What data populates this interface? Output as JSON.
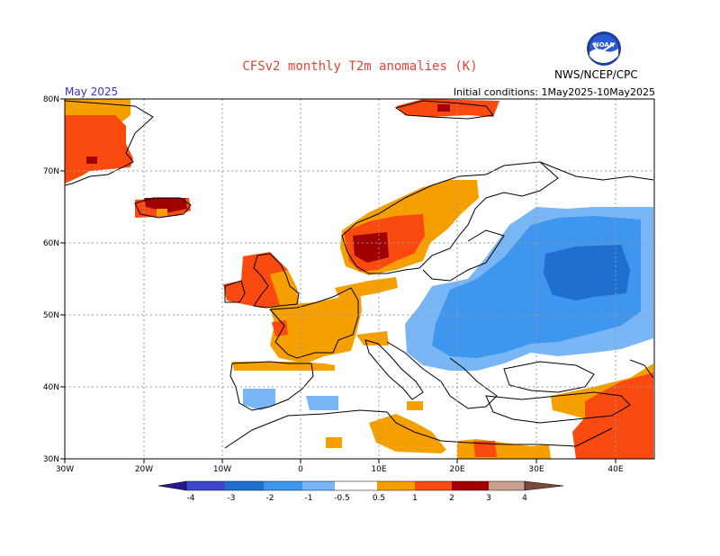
{
  "header": {
    "title": "CFSv2 monthly T2m anomalies (K)",
    "month": "May 2025",
    "initial_conditions": "Initial conditions: 1May2025-10May2025",
    "organization": "NWS/NCEP/CPC",
    "logo_text": "NOAA"
  },
  "map": {
    "lon_labels": [
      "30W",
      "20W",
      "10W",
      "0",
      "10E",
      "20E",
      "30E",
      "40E"
    ],
    "lat_labels": [
      "80N",
      "70N",
      "60N",
      "50N",
      "40N",
      "30N"
    ],
    "lon_range": [
      -30,
      45
    ],
    "lat_range": [
      30,
      80
    ]
  },
  "colorbar": {
    "labels": [
      "-4",
      "-3",
      "-2",
      "-1",
      "-0.5",
      "0.5",
      "1",
      "2",
      "3",
      "4"
    ],
    "colors": [
      "#2222aa",
      "#3f48cc",
      "#1f6fcf",
      "#3f96ee",
      "#78b6f5",
      "#ffffff",
      "#f5a000",
      "#fa4a10",
      "#a00000",
      "#c8a090",
      "#7a4a3a"
    ],
    "left_end_color": "#2a1890",
    "right_end_color": "#7a4a3a"
  },
  "legend_colors": {
    "pos_05_1": "#f5a000",
    "pos_1_2": "#fa4a10",
    "pos_2_3": "#a00000",
    "neg_05_1": "#78b6f5",
    "neg_1_2": "#3f96ee",
    "neg_2_3": "#1f6fcf"
  }
}
